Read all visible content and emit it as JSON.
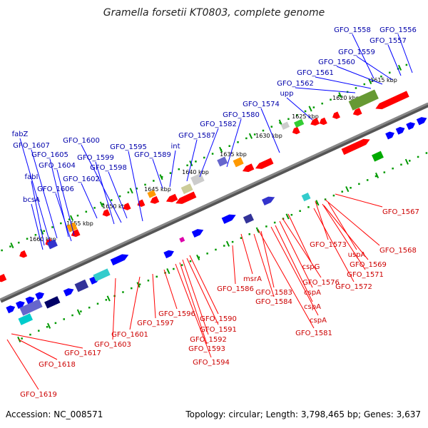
{
  "title": "Gramella forsetii KT0803, complete genome",
  "accession": "Accession: NC_008571",
  "summary": "Topology: circular; Length: 3,798,465 bp; Genes: 3,637",
  "colors": {
    "forward_label": "#0000aa",
    "reverse_label": "#cc0000",
    "forward_gene": "#0000ff",
    "reverse_gene": "#ff0000",
    "backbone": "#888888",
    "ruler": "#009900"
  },
  "scale_labels": [
    "1615 kbp",
    "1620 kbp",
    "1625 kbp",
    "1630 kbp",
    "1635 kbp",
    "1640 kbp",
    "1645 kbp",
    "1650 kbp",
    "1655 kbp",
    "1660 kbp"
  ],
  "forward_genes": [
    "GFO_1558",
    "GFO_1556",
    "GFO_1557",
    "GFO_1559",
    "GFO_1560",
    "GFO_1561",
    "GFO_1562",
    "upp",
    "GFO_1574",
    "GFO_1580",
    "GFO_1582",
    "GFO_1587",
    "int",
    "GFO_1589",
    "GFO_1595",
    "GFO_1600",
    "GFO_1599",
    "GFO_1598",
    "GFO_1602",
    "fabZ",
    "GFO_1607",
    "GFO_1605",
    "GFO_1604",
    "fabI",
    "GFO_1606",
    "bcsA"
  ],
  "reverse_genes": [
    "GFO_1567",
    "GFO_1573",
    "GFO_1568",
    "uspA",
    "GFO_1569",
    "GFO_1571",
    "GFO_1572",
    "cspG",
    "GFO_1576",
    "cspA",
    "cspA",
    "cspA",
    "GFO_1581",
    "msrA",
    "GFO_1583",
    "GFO_1584",
    "GFO_1586",
    "GFO_1590",
    "GFO_1591",
    "GFO_1592",
    "GFO_1593",
    "GFO_1594",
    "GFO_1596",
    "GFO_1597",
    "GFO_1601",
    "GFO_1603",
    "GFO_1617",
    "GFO_1618",
    "GFO_1619"
  ]
}
